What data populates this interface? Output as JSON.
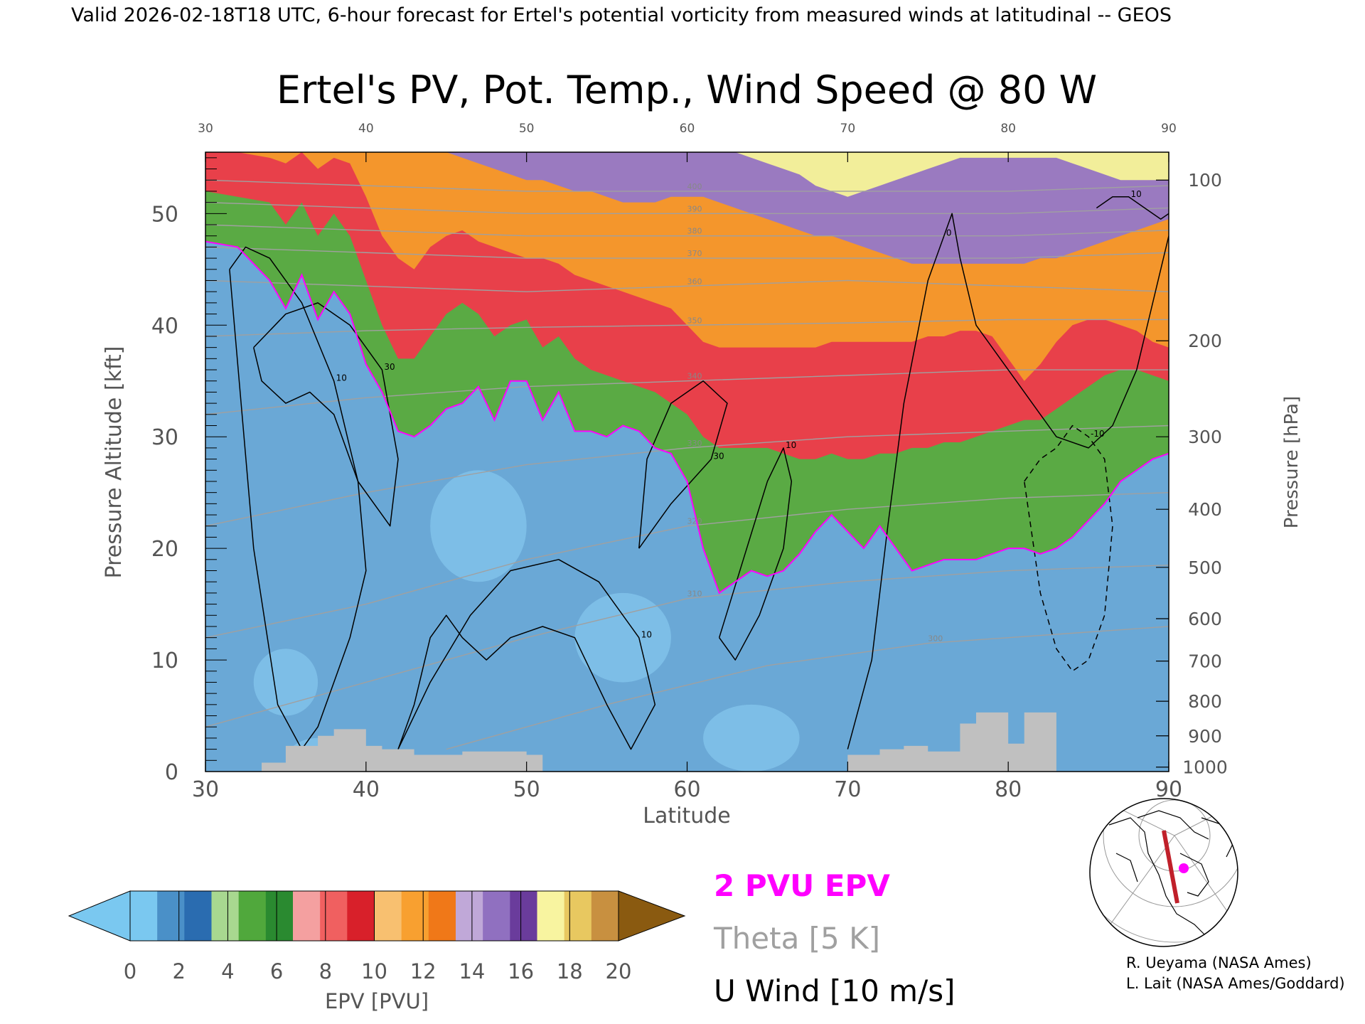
{
  "header": {
    "valid_line": "Valid 2026-02-18T18 UTC, 6-hour forecast for Ertel's potential vorticity from measured winds at latitudinal -- GEOS"
  },
  "chart_data": {
    "type": "heatmap",
    "title": "Ertel's PV, Pot. Temp., Wind Speed @ 80 W",
    "xlabel": "Latitude",
    "ylabel": "Pressure Altitude [kft]",
    "y2label": "Pressure [hPa]",
    "xlim": [
      30,
      90
    ],
    "ylim": [
      0,
      55.5
    ],
    "x_ticks": [
      30,
      40,
      50,
      60,
      70,
      80,
      90
    ],
    "y_ticks": [
      0,
      10,
      20,
      30,
      40,
      50
    ],
    "pressure_ticks": [
      {
        "label": "1000",
        "kft": 0.4
      },
      {
        "label": "900",
        "kft": 3.2
      },
      {
        "label": "800",
        "kft": 6.3
      },
      {
        "label": "700",
        "kft": 9.9
      },
      {
        "label": "600",
        "kft": 13.7
      },
      {
        "label": "500",
        "kft": 18.3
      },
      {
        "label": "400",
        "kft": 23.5
      },
      {
        "label": "300",
        "kft": 30.0
      },
      {
        "label": "200",
        "kft": 38.6
      },
      {
        "label": "100",
        "kft": 53.0
      }
    ],
    "pv_2pvu_contour": {
      "lat": [
        30,
        32,
        34,
        35,
        36,
        37,
        38,
        39,
        40,
        41,
        42,
        43,
        44,
        45,
        46,
        47,
        48,
        49,
        50,
        51,
        52,
        53,
        54,
        55,
        56,
        57,
        58,
        59,
        60,
        61,
        62,
        63,
        64,
        65,
        66,
        67,
        68,
        69,
        70,
        71,
        72,
        73,
        74,
        75,
        76,
        77,
        78,
        79,
        80,
        81,
        82,
        83,
        84,
        85,
        86,
        87,
        88,
        89,
        90
      ],
      "kft": [
        47.5,
        47.0,
        44.0,
        41.5,
        44.5,
        40.5,
        43.0,
        41.0,
        36.5,
        34.0,
        30.5,
        30.0,
        31.0,
        32.5,
        33.0,
        34.5,
        31.5,
        35.0,
        35.0,
        31.5,
        34.0,
        30.5,
        30.5,
        30.0,
        31.0,
        30.5,
        29.0,
        28.5,
        26.0,
        20.0,
        16.0,
        17.0,
        18.0,
        17.5,
        18.0,
        19.5,
        21.5,
        23.0,
        21.5,
        20.0,
        22.0,
        20.0,
        18.0,
        18.5,
        19.0,
        19.0,
        19.0,
        19.5,
        20.0,
        20.0,
        19.5,
        20.0,
        21.0,
        22.5,
        24.0,
        26.0,
        27.0,
        28.0,
        28.5
      ]
    },
    "pv_bands": [
      {
        "range": "0-2",
        "kft": [
          47.5,
          47.0,
          44.0,
          41.5,
          44.5,
          40.5,
          43.0,
          41.0,
          36.5,
          34.0,
          30.5,
          30.0,
          31.0,
          32.5,
          33.0,
          34.5,
          31.5,
          35.0,
          35.0,
          31.5,
          34.0,
          30.5,
          30.5,
          30.0,
          31.0,
          30.5,
          29.0,
          28.5,
          26.0,
          20.0,
          16.0,
          17.0,
          18.0,
          17.5,
          18.0,
          19.5,
          21.5,
          23.0,
          21.5,
          20.0,
          22.0,
          20.0,
          18.0,
          18.5,
          19.0,
          19.0,
          19.0,
          19.5,
          20.0,
          20.0,
          19.5,
          20.0,
          21.0,
          22.5,
          24.0,
          26.0,
          27.0,
          28.0,
          28.5
        ]
      },
      {
        "range": "2-6",
        "kft": [
          52.0,
          51.5,
          51.0,
          49.0,
          51.0,
          48.0,
          50.0,
          48.0,
          44.0,
          40.0,
          37.0,
          37.0,
          39.0,
          41.0,
          42.0,
          41.0,
          39.0,
          40.0,
          40.5,
          38.0,
          39.0,
          37.0,
          36.0,
          35.5,
          35.0,
          34.5,
          34.0,
          33.0,
          32.0,
          30.0,
          29.0,
          29.0,
          29.0,
          29.0,
          28.5,
          28.0,
          28.0,
          28.5,
          28.0,
          28.0,
          28.5,
          28.5,
          29.0,
          29.0,
          29.5,
          29.5,
          30.0,
          30.5,
          31.0,
          31.5,
          31.5,
          32.5,
          33.5,
          34.5,
          35.5,
          36.0,
          36.0,
          35.5,
          35.0
        ]
      },
      {
        "range": "6-10",
        "kft": [
          55.5,
          55.5,
          55.0,
          54.5,
          55.5,
          54.0,
          55.0,
          54.5,
          51.5,
          48.0,
          46.0,
          45.0,
          47.0,
          48.0,
          48.5,
          47.5,
          47.0,
          46.5,
          46.0,
          46.0,
          45.5,
          44.5,
          44.0,
          43.5,
          43.0,
          42.5,
          42.0,
          41.5,
          40.0,
          38.5,
          38.0,
          38.0,
          38.0,
          38.0,
          38.0,
          38.0,
          38.0,
          38.5,
          38.5,
          38.5,
          38.5,
          38.5,
          38.5,
          39.0,
          39.0,
          39.5,
          39.5,
          39.0,
          37.0,
          35.0,
          36.5,
          38.5,
          40.0,
          40.5,
          40.5,
          40.0,
          39.5,
          38.5,
          38.0
        ]
      },
      {
        "range": "10-14",
        "kft": [
          55.5,
          55.5,
          55.5,
          55.5,
          55.5,
          55.5,
          55.5,
          55.5,
          55.5,
          55.5,
          55.5,
          55.5,
          55.5,
          55.5,
          55.0,
          54.5,
          54.0,
          53.5,
          53.0,
          53.0,
          52.5,
          52.0,
          52.0,
          51.5,
          51.0,
          51.0,
          51.0,
          51.5,
          51.5,
          51.5,
          51.0,
          50.5,
          50.0,
          49.5,
          49.0,
          48.5,
          48.0,
          48.0,
          47.5,
          47.0,
          46.5,
          46.0,
          45.5,
          45.5,
          45.5,
          45.5,
          45.5,
          45.5,
          45.5,
          45.5,
          46.0,
          46.0,
          46.5,
          47.0,
          47.5,
          48.0,
          48.5,
          49.0,
          49.5
        ]
      },
      {
        "range": "14-18",
        "kft": [
          55.5,
          55.5,
          55.5,
          55.5,
          55.5,
          55.5,
          55.5,
          55.5,
          55.5,
          55.5,
          55.5,
          55.5,
          55.5,
          55.5,
          55.5,
          55.5,
          55.5,
          55.5,
          55.5,
          55.5,
          55.5,
          55.5,
          55.5,
          55.5,
          55.5,
          55.5,
          55.5,
          55.5,
          55.5,
          55.5,
          55.5,
          55.5,
          55.0,
          54.5,
          54.0,
          53.5,
          52.5,
          52.0,
          51.5,
          52.0,
          52.5,
          53.0,
          53.5,
          54.0,
          54.5,
          55.0,
          55.0,
          55.0,
          55.0,
          55.0,
          55.0,
          55.0,
          54.5,
          54.0,
          53.5,
          53.0,
          53.0,
          53.0,
          53.0
        ]
      },
      {
        "range": "18-20",
        "kft": [
          55.5,
          55.5,
          55.5,
          55.5,
          55.5,
          55.5,
          55.5,
          55.5,
          55.5,
          55.5,
          55.5,
          55.5,
          55.5,
          55.5,
          55.5,
          55.5,
          55.5,
          55.5,
          55.5,
          55.5,
          55.5,
          55.5,
          55.5,
          55.5,
          55.5,
          55.5,
          55.5,
          55.5,
          55.5,
          55.5,
          55.5,
          55.5,
          55.5,
          55.5,
          55.5,
          55.5,
          55.0,
          54.5,
          54.0,
          54.5,
          55.0,
          55.5,
          55.5,
          55.5,
          55.5,
          55.5,
          55.5,
          55.5,
          55.5,
          55.5,
          55.5,
          55.5,
          55.5,
          55.5,
          55.5,
          55.5,
          55.5,
          55.5,
          55.5
        ]
      }
    ],
    "pv_band_colors": [
      "#6aa8d6",
      "#5aaa44",
      "#e8404a",
      "#f4962c",
      "#9a7ac0",
      "#f2ee9a"
    ],
    "theta_contours": [
      {
        "label": "300",
        "lat": [
          45,
          55,
          65,
          75,
          85,
          90
        ],
        "kft": [
          2.0,
          6.0,
          9.5,
          11.5,
          12.5,
          13.0
        ]
      },
      {
        "label": "310",
        "lat": [
          30,
          40,
          50,
          60,
          70,
          80,
          90
        ],
        "kft": [
          4.0,
          8.0,
          12.0,
          15.5,
          17.0,
          18.0,
          18.5
        ]
      },
      {
        "label": "320",
        "lat": [
          30,
          40,
          50,
          60,
          70,
          80,
          90
        ],
        "kft": [
          12.0,
          15.0,
          19.0,
          22.0,
          23.5,
          24.5,
          25.0
        ]
      },
      {
        "label": "330",
        "lat": [
          30,
          40,
          50,
          60,
          70,
          80,
          90
        ],
        "kft": [
          22.0,
          25.0,
          27.5,
          29.0,
          30.0,
          30.5,
          31.0
        ]
      },
      {
        "label": "340",
        "lat": [
          30,
          40,
          50,
          60,
          70,
          80,
          90
        ],
        "kft": [
          32.0,
          33.5,
          34.5,
          35.0,
          35.5,
          36.0,
          36.0
        ]
      },
      {
        "label": "350",
        "lat": [
          30,
          40,
          50,
          60,
          70,
          80,
          90
        ],
        "kft": [
          39.0,
          39.5,
          39.8,
          40.0,
          40.2,
          40.5,
          40.5
        ]
      },
      {
        "label": "360",
        "lat": [
          30,
          40,
          50,
          60,
          70,
          80,
          90
        ],
        "kft": [
          44.0,
          43.5,
          43.0,
          43.5,
          44.0,
          43.5,
          43.0
        ]
      },
      {
        "label": "370",
        "lat": [
          30,
          40,
          50,
          60,
          70,
          80,
          90
        ],
        "kft": [
          47.0,
          46.5,
          46.0,
          46.0,
          46.0,
          46.0,
          46.5
        ]
      },
      {
        "label": "380",
        "lat": [
          30,
          40,
          50,
          60,
          70,
          80,
          90
        ],
        "kft": [
          49.0,
          48.5,
          48.0,
          48.0,
          48.0,
          48.0,
          48.5
        ]
      },
      {
        "label": "390",
        "lat": [
          30,
          40,
          50,
          60,
          70,
          80,
          90
        ],
        "kft": [
          51.0,
          50.5,
          50.0,
          50.0,
          50.0,
          50.0,
          50.5
        ]
      },
      {
        "label": "400",
        "lat": [
          30,
          40,
          50,
          60,
          70,
          80,
          90
        ],
        "kft": [
          53.0,
          52.5,
          52.0,
          52.0,
          52.0,
          52.0,
          52.5
        ]
      }
    ],
    "wind_contours": [
      {
        "label": "10",
        "lat": [
          31.5,
          32.5,
          34,
          36,
          38,
          39.5,
          40,
          39,
          38,
          37,
          36,
          34.5,
          33,
          31.5
        ],
        "kft": [
          45,
          47,
          46,
          42,
          35,
          26,
          18,
          12,
          8,
          4,
          2,
          6,
          20,
          45
        ]
      },
      {
        "label": "30",
        "lat": [
          33,
          35,
          37,
          39,
          41,
          42,
          41.5,
          39.5,
          38,
          36.5,
          35,
          33.5,
          33
        ],
        "kft": [
          38,
          41,
          42,
          40,
          36,
          28,
          22,
          26,
          32,
          34,
          33,
          35,
          38
        ]
      },
      {
        "label": "10",
        "lat": [
          42,
          44,
          46.5,
          49,
          52,
          54.5,
          57,
          58,
          56.5,
          55,
          53,
          51,
          49,
          47.5,
          46,
          45,
          44,
          43,
          42
        ],
        "kft": [
          2,
          8,
          14,
          18,
          19,
          17,
          12,
          6,
          2,
          6,
          12,
          13,
          12,
          10,
          12,
          14,
          12,
          6,
          2
        ]
      },
      {
        "label": "30",
        "lat": [
          57,
          59,
          61.5,
          62.5,
          61,
          59,
          57.5,
          57
        ],
        "kft": [
          20,
          24,
          28,
          33,
          35,
          33,
          28,
          20
        ]
      },
      {
        "label": "10",
        "lat": [
          62,
          63.5,
          65,
          66,
          66.5,
          66,
          64.5,
          63,
          62
        ],
        "kft": [
          12,
          19,
          26,
          29,
          26,
          20,
          14,
          10,
          12
        ]
      },
      {
        "label": "0",
        "lat": [
          70,
          71.5,
          72.5,
          73.5,
          75,
          76,
          76.5,
          77,
          78,
          80.5,
          82,
          83,
          85,
          86.5,
          88,
          89,
          90
        ],
        "kft": [
          2,
          10,
          22,
          33,
          44,
          48,
          50,
          46,
          40,
          35,
          32,
          30,
          29,
          31,
          36,
          42,
          48
        ]
      },
      {
        "label": "10",
        "lat": [
          85.5,
          86.5,
          87.5,
          88.5,
          89.5,
          90
        ],
        "kft": [
          50.5,
          51.5,
          51.5,
          50.5,
          49.5,
          50.0
        ]
      },
      {
        "label": "-10",
        "lat": [
          81,
          82,
          83,
          84,
          85,
          86,
          86.5,
          86,
          85,
          84,
          83,
          82,
          81
        ],
        "kft": [
          26,
          28,
          29,
          31,
          30,
          28,
          22,
          14,
          10,
          9,
          11,
          16,
          26
        ]
      }
    ],
    "terrain": {
      "lat": [
        30,
        33.5,
        33.5,
        35,
        35,
        37,
        37,
        38,
        38,
        40,
        40,
        41,
        41,
        43,
        43,
        46,
        46,
        50,
        50,
        51,
        51,
        70,
        70,
        72,
        72,
        73.5,
        73.5,
        75,
        75,
        77,
        77,
        78,
        78,
        80,
        80,
        81,
        81,
        83,
        83,
        90
      ],
      "kft": [
        0,
        0,
        0.8,
        0.8,
        2.3,
        2.3,
        3.2,
        3.2,
        3.8,
        3.8,
        2.3,
        2.3,
        2.0,
        2.0,
        1.5,
        1.5,
        1.8,
        1.8,
        1.5,
        1.5,
        0,
        0,
        1.5,
        1.5,
        2.0,
        2.0,
        2.3,
        2.3,
        1.8,
        1.8,
        4.3,
        4.3,
        5.3,
        5.3,
        2.5,
        2.5,
        5.3,
        5.3,
        0,
        0
      ]
    },
    "colorbar": {
      "label": "EPV [PVU]",
      "ticks": [
        "0",
        "2",
        "4",
        "6",
        "8",
        "10",
        "12",
        "14",
        "16",
        "18",
        "20"
      ],
      "colors": [
        "#7ac8f0",
        "#4a90c8",
        "#2a6cb0",
        "#a8d890",
        "#50a83c",
        "#2a8a30",
        "#f4a0a0",
        "#f06060",
        "#d8202a",
        "#f8c070",
        "#f8a030",
        "#f07818",
        "#c0a8d8",
        "#9070c0",
        "#6a3c9c",
        "#f8f4a0",
        "#e8c860",
        "#c89040",
        "#8a5a10"
      ]
    }
  },
  "legend": {
    "pv_label": "2 PVU EPV",
    "theta_label": "Theta [5 K]",
    "wind_label": "U Wind [10 m/s]"
  },
  "credits": {
    "line1": "R. Ueyama (NASA Ames)",
    "line2": "L. Lait (NASA Ames/Goddard)"
  },
  "colors": {
    "pv_contour": "#ff00ff",
    "theta": "#a0a0a0",
    "wind": "#000000",
    "terrain": "#c0c0c0",
    "path": "#c0202a"
  }
}
